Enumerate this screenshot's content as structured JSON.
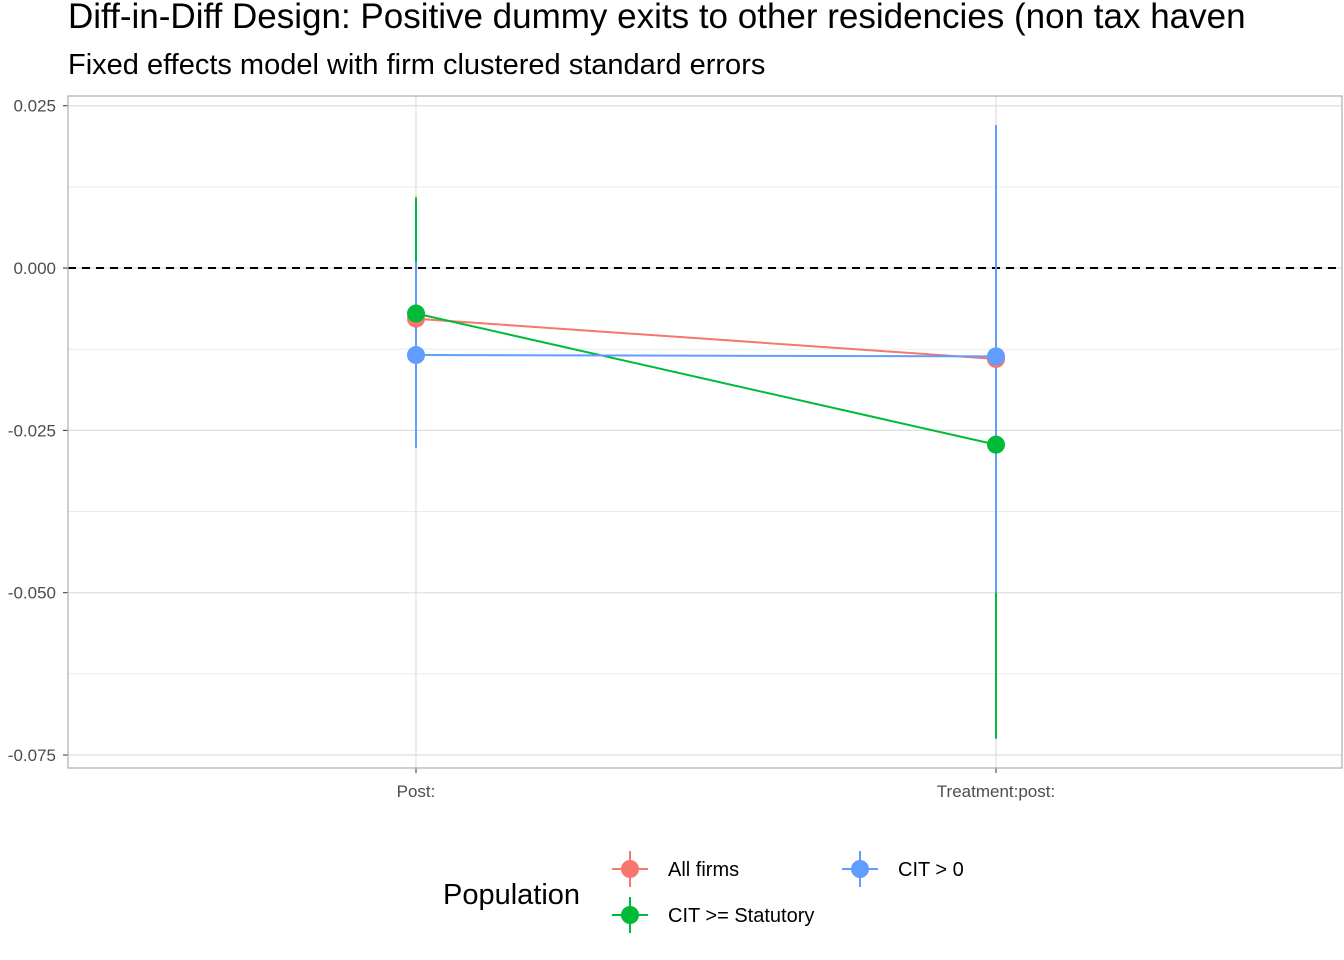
{
  "chart_data": {
    "type": "scatter",
    "title": "Diff-in-Diff Design: Positive dummy exits to other residencies (non tax haven",
    "subtitle": "Fixed effects model with firm clustered standard errors",
    "xlabel": "",
    "ylabel": "",
    "categories": [
      "Post:",
      "Treatment:post:"
    ],
    "ylim": [
      -0.077,
      0.0265
    ],
    "yticks": [
      0.025,
      0.0,
      -0.025,
      -0.05,
      -0.075
    ],
    "ytick_labels": [
      "0.025",
      "0.000",
      "-0.025",
      "-0.050",
      "-0.075"
    ],
    "reference_line": 0.0,
    "grid": true,
    "legend": {
      "title": "Population",
      "position": "bottom"
    },
    "series": [
      {
        "name": "All firms",
        "color": "#F8766D",
        "values": [
          -0.0078,
          -0.014
        ],
        "lower": [
          -0.027,
          -0.05
        ],
        "upper": [
          0.011,
          0.022
        ]
      },
      {
        "name": "CIT >= Statutory",
        "color": "#00BA38",
        "values": [
          -0.007,
          -0.0272
        ],
        "lower": [
          -0.025,
          -0.0725
        ],
        "upper": [
          0.0108,
          0.018
        ]
      },
      {
        "name": "CIT > 0",
        "color": "#619CFF",
        "values": [
          -0.0134,
          -0.0136
        ],
        "lower": [
          -0.0277,
          -0.05
        ],
        "upper": [
          0.001,
          0.022
        ]
      }
    ]
  }
}
